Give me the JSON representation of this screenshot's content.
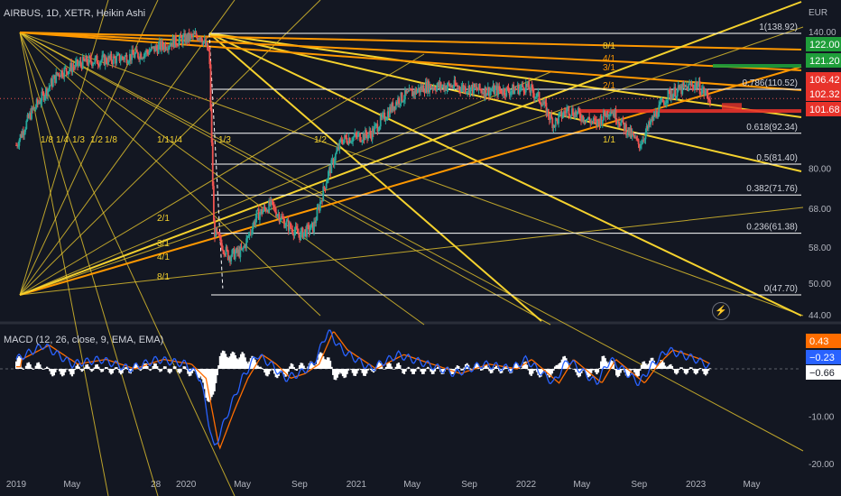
{
  "header": {
    "symbol_title": "AIRBUS, 1D, XETR, Heikin Ashi",
    "currency": "EUR",
    "macd_title": "MACD (12, 26, close, 9, EMA, EMA)"
  },
  "icons": {
    "flash": "lightning-icon"
  },
  "colors": {
    "background": "#131722",
    "up": "#26a69a",
    "down": "#ef5350",
    "gann": "#f5d22e",
    "gann_orange": "#ff9800",
    "fib": "#ffffff",
    "macd": "#2962ff",
    "signal": "#ff6d00",
    "green_tag": "#1f9e3a",
    "red_tag": "#e8332b"
  },
  "chart_data": [
    {
      "type": "candlestick",
      "title": "AIRBUS, 1D, XETR, Heikin Ashi",
      "ylabel": "EUR",
      "ylim_note": "log price scale",
      "x_ticks": [
        "2019",
        "May",
        "28",
        "2020",
        "May",
        "Sep",
        "2021",
        "May",
        "Sep",
        "2022",
        "May",
        "Sep",
        "2023",
        "May"
      ],
      "y_ticks": [
        "140.00",
        "80.00",
        "68.00",
        "58.00",
        "50.00",
        "44.00"
      ],
      "price_path": [
        [
          "2019-01",
          88
        ],
        [
          "2019-02",
          100
        ],
        [
          "2019-04",
          118
        ],
        [
          "2019-06",
          124
        ],
        [
          "2019-08",
          125
        ],
        [
          "2019-10",
          128
        ],
        [
          "2019-12",
          134
        ],
        [
          "2020-02",
          138
        ],
        [
          "2020-02-20",
          128
        ],
        [
          "2020-03",
          62
        ],
        [
          "2020-04",
          56
        ],
        [
          "2020-05",
          57
        ],
        [
          "2020-06",
          66
        ],
        [
          "2020-07",
          69
        ],
        [
          "2020-08",
          64
        ],
        [
          "2020-09",
          61
        ],
        [
          "2020-10",
          63
        ],
        [
          "2020-11",
          78
        ],
        [
          "2020-12",
          90
        ],
        [
          "2021-02",
          92
        ],
        [
          "2021-04",
          106
        ],
        [
          "2021-06",
          112
        ],
        [
          "2021-08",
          112
        ],
        [
          "2021-10",
          110
        ],
        [
          "2021-12",
          110
        ],
        [
          "2022-01",
          112
        ],
        [
          "2022-02",
          106
        ],
        [
          "2022-03",
          96
        ],
        [
          "2022-04",
          102
        ],
        [
          "2022-06",
          96
        ],
        [
          "2022-07",
          102
        ],
        [
          "2022-09",
          88
        ],
        [
          "2022-10",
          98
        ],
        [
          "2022-11",
          108
        ],
        [
          "2023-01",
          113
        ],
        [
          "2023-02",
          106.42
        ]
      ],
      "fib_levels": [
        {
          "label": "1(138.92)",
          "value": 138.92
        },
        {
          "label": "0.786(110.52)",
          "value": 110.52
        },
        {
          "label": "0.618(92.34)",
          "value": 92.34
        },
        {
          "label": "0.5(81.40)",
          "value": 81.4
        },
        {
          "label": "0.382(71.76)",
          "value": 71.76
        },
        {
          "label": "0.236(61.38)",
          "value": 61.38
        },
        {
          "label": "0(47.70)",
          "value": 47.7
        }
      ],
      "gann_labels_left": [
        "1/8",
        "1/4",
        "1/3",
        "1/2",
        "1/8"
      ],
      "gann_labels_mid": [
        "1/1",
        "1/4",
        "1/3",
        "1/2",
        "2/1",
        "3/1",
        "4/1",
        "8/1"
      ],
      "gann_labels_right": [
        "8/1",
        "4/1",
        "3/1",
        "2/1",
        "1/1"
      ],
      "price_tags": [
        {
          "value": "122.00",
          "color": "#1f9e3a"
        },
        {
          "value": "121.20",
          "color": "#1f9e3a"
        },
        {
          "value": "106.42",
          "color": "#e8332b"
        },
        {
          "value": "102.32",
          "color": "#e8332b"
        },
        {
          "value": "101.68",
          "color": "#e8332b"
        }
      ]
    },
    {
      "type": "line",
      "title": "MACD (12, 26, close, 9, EMA, EMA)",
      "y_ticks": [
        "-10.00",
        "-20.00"
      ],
      "series": [
        {
          "name": "MACD",
          "color": "#2962ff"
        },
        {
          "name": "Signal",
          "color": "#ff6d00"
        }
      ],
      "macd_path": [
        [
          "2019-01",
          2
        ],
        [
          "2019-03",
          5
        ],
        [
          "2019-05",
          1
        ],
        [
          "2019-07",
          2
        ],
        [
          "2019-09",
          0
        ],
        [
          "2019-11",
          2
        ],
        [
          "2020-01",
          1
        ],
        [
          "2020-02",
          -2
        ],
        [
          "2020-03",
          -17
        ],
        [
          "2020-04",
          -9
        ],
        [
          "2020-05",
          -2
        ],
        [
          "2020-06",
          3
        ],
        [
          "2020-07",
          1
        ],
        [
          "2020-08",
          -2
        ],
        [
          "2020-09",
          -1
        ],
        [
          "2020-10",
          1
        ],
        [
          "2020-11",
          8
        ],
        [
          "2020-12",
          4
        ],
        [
          "2021-02",
          0
        ],
        [
          "2021-04",
          3
        ],
        [
          "2021-06",
          1
        ],
        [
          "2021-08",
          -1
        ],
        [
          "2021-10",
          1
        ],
        [
          "2021-12",
          0
        ],
        [
          "2022-01",
          2
        ],
        [
          "2022-03",
          -3
        ],
        [
          "2022-04",
          2
        ],
        [
          "2022-06",
          -3
        ],
        [
          "2022-07",
          2
        ],
        [
          "2022-09",
          -3
        ],
        [
          "2022-10",
          1
        ],
        [
          "2022-11",
          4
        ],
        [
          "2023-01",
          2
        ],
        [
          "2023-02",
          0.43
        ]
      ],
      "value_tags": [
        {
          "value": "0.43",
          "color": "#ff6d00"
        },
        {
          "value": "−0.23",
          "color": "#2962ff"
        },
        {
          "value": "−0.66",
          "color": "#ffffff"
        }
      ]
    }
  ]
}
